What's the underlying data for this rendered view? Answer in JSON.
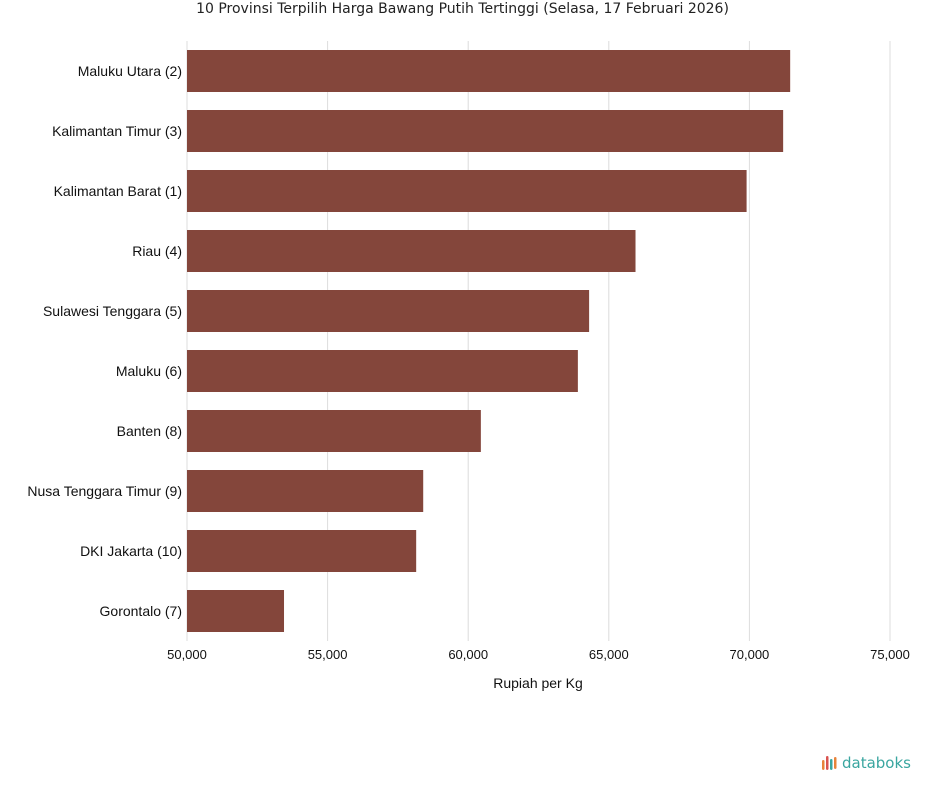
{
  "chart_data": {
    "type": "bar",
    "orientation": "horizontal",
    "title": "10 Provinsi Terpilih Harga Bawang Putih Tertinggi (Selasa, 17 Februari 2026)",
    "xlabel": "Rupiah per Kg",
    "ylabel": "",
    "xlim": [
      50000,
      75000
    ],
    "xticks": [
      50000,
      55000,
      60000,
      65000,
      70000,
      75000
    ],
    "xtick_labels": [
      "50,000",
      "55,000",
      "60,000",
      "65,000",
      "70,000",
      "75,000"
    ],
    "grid": true,
    "categories": [
      "Maluku Utara (2)",
      "Kalimantan Timur (3)",
      "Kalimantan Barat (1)",
      "Riau (4)",
      "Sulawesi Tenggara (5)",
      "Maluku (6)",
      "Banten (8)",
      "Nusa Tenggara Timur (9)",
      "DKI Jakarta (10)",
      "Gorontalo (7)"
    ],
    "values": [
      71450,
      71200,
      69900,
      65950,
      64300,
      63900,
      60450,
      58400,
      58150,
      53450
    ],
    "bar_color": "#84463b"
  },
  "brand": {
    "name": "databoks",
    "colors": {
      "text": "#3aa6a0",
      "icon_bars": [
        "#e8833a",
        "#d9534f",
        "#3aa6a0"
      ]
    }
  }
}
